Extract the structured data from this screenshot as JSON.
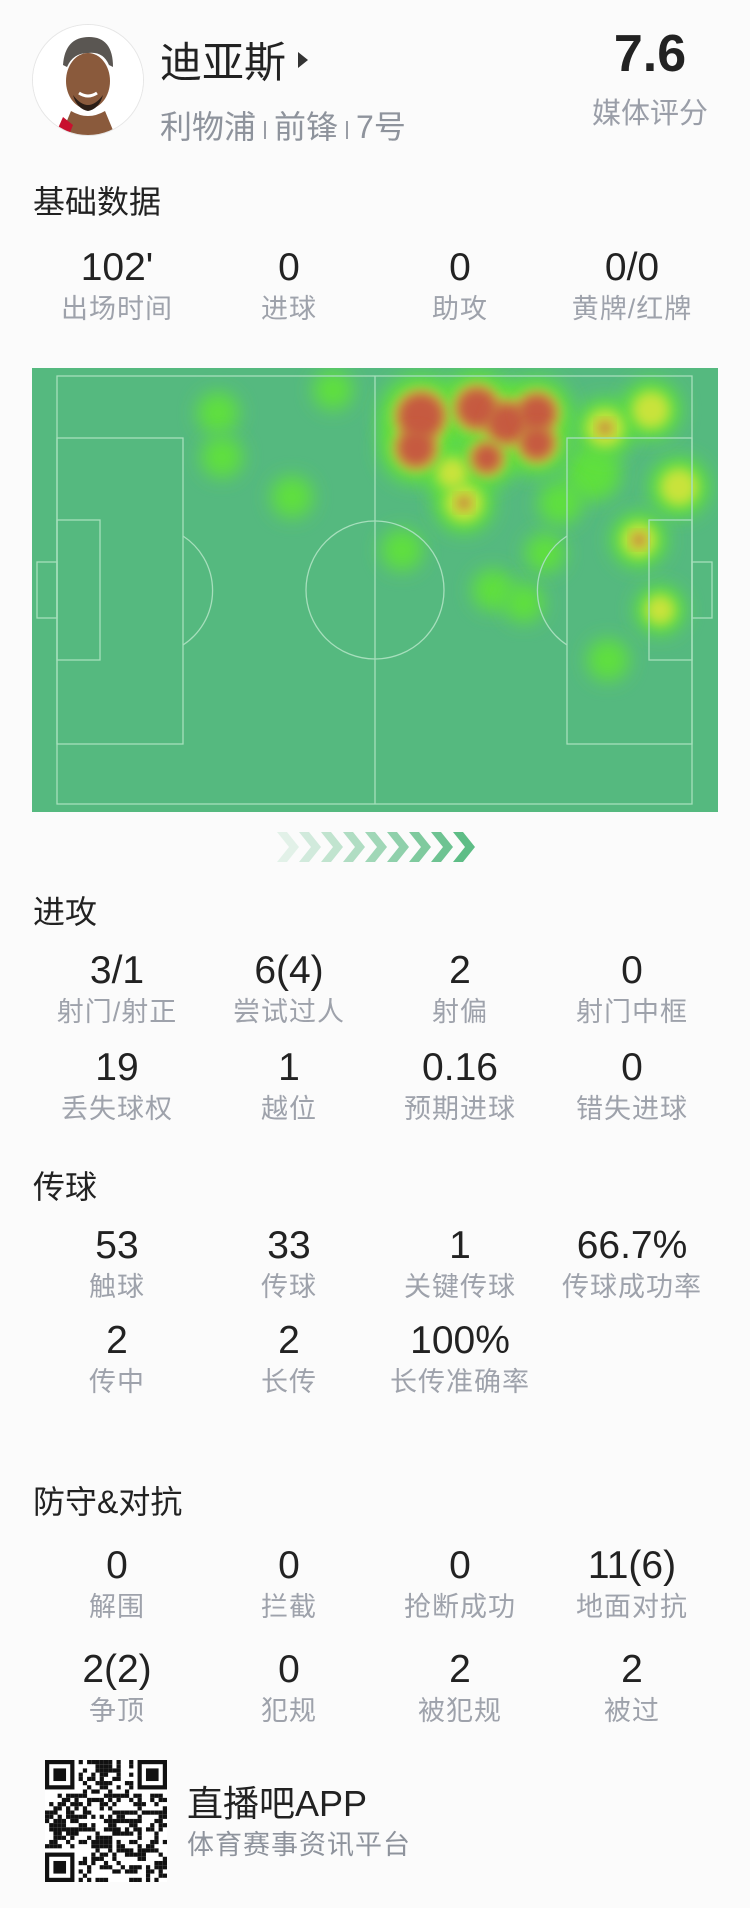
{
  "header": {
    "player_name": "迪亚斯",
    "team": "利物浦",
    "position": "前锋",
    "number": "7号",
    "rating": "7.6",
    "rating_label": "媒体评分"
  },
  "sections": [
    {
      "title": "基础数据",
      "rows": [
        [
          {
            "value": "102'",
            "label": "出场时间"
          },
          {
            "value": "0",
            "label": "进球"
          },
          {
            "value": "0",
            "label": "助攻"
          },
          {
            "value": "0/0",
            "label": "黄牌/红牌"
          }
        ]
      ]
    },
    {
      "title": "进攻",
      "rows": [
        [
          {
            "value": "3/1",
            "label": "射门/射正"
          },
          {
            "value": "6(4)",
            "label": "尝试过人"
          },
          {
            "value": "2",
            "label": "射偏"
          },
          {
            "value": "0",
            "label": "射门中框"
          }
        ],
        [
          {
            "value": "19",
            "label": "丢失球权"
          },
          {
            "value": "1",
            "label": "越位"
          },
          {
            "value": "0.16",
            "label": "预期进球"
          },
          {
            "value": "0",
            "label": "错失进球"
          }
        ]
      ]
    },
    {
      "title": "传球",
      "rows": [
        [
          {
            "value": "53",
            "label": "触球"
          },
          {
            "value": "33",
            "label": "传球"
          },
          {
            "value": "1",
            "label": "关键传球"
          },
          {
            "value": "66.7%",
            "label": "传球成功率"
          }
        ],
        [
          {
            "value": "2",
            "label": "传中"
          },
          {
            "value": "2",
            "label": "长传"
          },
          {
            "value": "100%",
            "label": "长传准确率"
          }
        ]
      ]
    },
    {
      "title": "防守&对抗",
      "rows": [
        [
          {
            "value": "0",
            "label": "解围"
          },
          {
            "value": "0",
            "label": "拦截"
          },
          {
            "value": "0",
            "label": "抢断成功"
          },
          {
            "value": "11(6)",
            "label": "地面对抗"
          }
        ],
        [
          {
            "value": "2(2)",
            "label": "争顶"
          },
          {
            "value": "0",
            "label": "犯规"
          },
          {
            "value": "2",
            "label": "被犯规"
          },
          {
            "value": "2",
            "label": "被过"
          }
        ]
      ]
    }
  ],
  "colors": {
    "pitch": "#55b97f",
    "pitch_lines": "#9ad9b2",
    "heat_low": "#5fe03c",
    "heat_mid": "#c9e33b",
    "heat_high": "#c65a40",
    "label": "#9ea2ab"
  },
  "footer": {
    "app_name": "直播吧APP",
    "app_tagline": "体育赛事资讯平台"
  }
}
